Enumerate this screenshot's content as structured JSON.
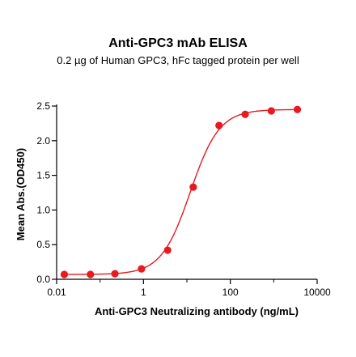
{
  "chart_data": {
    "type": "line",
    "title": "Anti-GPC3 mAb ELISA",
    "subtitle": "0.2 µg of Human GPC3, hFc tagged protein per well",
    "xlabel": "Anti-GPC3 Neutralizing antibody (ng/mL)",
    "ylabel": "Mean Abs.(OD450)",
    "xscale": "log",
    "xlim": [
      0.01,
      10000
    ],
    "ylim": [
      0,
      2.5
    ],
    "xticks": [
      0.01,
      1,
      100,
      10000
    ],
    "xtick_labels": [
      "0.01",
      "1",
      "100",
      "10000"
    ],
    "yticks": [
      0,
      0.5,
      1,
      1.5,
      2,
      2.5
    ],
    "ytick_labels": [
      "0.0",
      "0.5",
      "1.0",
      "1.5",
      "2.0",
      "2.5"
    ],
    "grid": false,
    "color": "#e8191f",
    "series": [
      {
        "x": [
          0.015,
          0.06,
          0.22,
          0.9,
          3.6,
          14,
          55,
          220,
          880,
          3500
        ],
        "y": [
          0.07,
          0.07,
          0.08,
          0.15,
          0.42,
          1.33,
          2.22,
          2.38,
          2.43,
          2.45
        ]
      }
    ],
    "fit": {
      "model": "4PL",
      "bottom": 0.07,
      "top": 2.45,
      "ec50": 12,
      "hill": 1.3
    }
  }
}
